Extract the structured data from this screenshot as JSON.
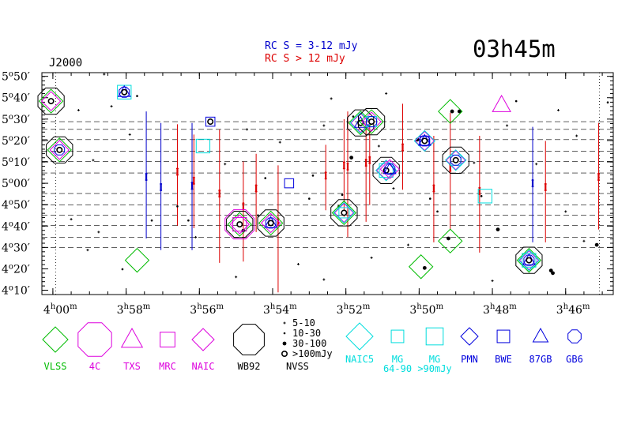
{
  "chart_data": {
    "type": "scatter",
    "title": "03h45m",
    "epoch_label": "J2000",
    "rc_notes": [
      {
        "text": "RC S = 3-12 mJy",
        "color": "#0000cc"
      },
      {
        "text": "RC S > 12 mJy",
        "color": "#dd0000"
      }
    ],
    "x_ticks": [
      {
        "value": 240,
        "hour": "4",
        "minute": "00"
      },
      {
        "value": 238,
        "hour": "3",
        "minute": "58"
      },
      {
        "value": 236,
        "hour": "3",
        "minute": "56"
      },
      {
        "value": 234,
        "hour": "3",
        "minute": "54"
      },
      {
        "value": 232,
        "hour": "3",
        "minute": "52"
      },
      {
        "value": 230,
        "hour": "3",
        "minute": "50"
      },
      {
        "value": 228,
        "hour": "3",
        "minute": "48"
      },
      {
        "value": 226,
        "hour": "3",
        "minute": "46"
      }
    ],
    "y_ticks": [
      {
        "value": 5.8333,
        "deg": "5",
        "arcmin": "50"
      },
      {
        "value": 5.6667,
        "deg": "5",
        "arcmin": "40"
      },
      {
        "value": 5.5,
        "deg": "5",
        "arcmin": "30"
      },
      {
        "value": 5.3333,
        "deg": "5",
        "arcmin": "20"
      },
      {
        "value": 5.1667,
        "deg": "5",
        "arcmin": "10"
      },
      {
        "value": 5.0,
        "deg": "5",
        "arcmin": "00"
      },
      {
        "value": 4.8333,
        "deg": "4",
        "arcmin": "50"
      },
      {
        "value": 4.6667,
        "deg": "4",
        "arcmin": "40"
      },
      {
        "value": 4.5,
        "deg": "4",
        "arcmin": "30"
      },
      {
        "value": 4.3333,
        "deg": "4",
        "arcmin": "20"
      },
      {
        "value": 4.1667,
        "deg": "4",
        "arcmin": "10"
      }
    ],
    "x_range_ra_minutes": [
      240.3,
      224.7
    ],
    "y_range_dec_degrees": [
      4.133,
      5.862
    ],
    "strip_lines_dec": [
      5.48,
      5.42,
      5.34,
      5.25,
      5.17,
      5.08,
      4.92,
      4.83,
      4.75,
      4.67,
      4.58,
      4.5
    ],
    "vertical_dotted_lines_ra": [
      239.92,
      225.08
    ],
    "rc_error_bars": [
      {
        "ra": 237.45,
        "dec": 5.05,
        "low": 4.57,
        "high": 5.56,
        "color": "blue"
      },
      {
        "ra": 237.05,
        "dec": 4.97,
        "low": 4.48,
        "high": 5.47,
        "color": "blue"
      },
      {
        "ra": 236.6,
        "dec": 5.09,
        "low": 4.67,
        "high": 5.46,
        "color": "red"
      },
      {
        "ra": 236.2,
        "dec": 4.98,
        "low": 4.48,
        "high": 5.47,
        "color": "blue"
      },
      {
        "ra": 236.15,
        "dec": 5.02,
        "low": 4.65,
        "high": 5.38,
        "color": "red"
      },
      {
        "ra": 235.45,
        "dec": 4.92,
        "low": 4.38,
        "high": 5.42,
        "color": "red"
      },
      {
        "ra": 234.8,
        "dec": 4.82,
        "low": 4.39,
        "high": 5.17,
        "color": "red"
      },
      {
        "ra": 234.45,
        "dec": 4.96,
        "low": 4.62,
        "high": 5.23,
        "color": "red"
      },
      {
        "ra": 233.85,
        "dec": 4.7,
        "low": 4.15,
        "high": 5.14,
        "color": "red"
      },
      {
        "ra": 232.55,
        "dec": 5.06,
        "low": 4.79,
        "high": 5.3,
        "color": "red"
      },
      {
        "ra": 232.05,
        "dec": 5.14,
        "low": 4.74,
        "high": 5.5,
        "color": "red"
      },
      {
        "ra": 231.95,
        "dec": 5.13,
        "low": 4.58,
        "high": 5.56,
        "color": "red"
      },
      {
        "ra": 231.45,
        "dec": 5.16,
        "low": 4.7,
        "high": 5.48,
        "color": "red"
      },
      {
        "ra": 231.35,
        "dec": 5.18,
        "low": 4.83,
        "high": 5.5,
        "color": "red"
      },
      {
        "ra": 230.45,
        "dec": 5.28,
        "low": 4.95,
        "high": 5.62,
        "color": "red"
      },
      {
        "ra": 229.6,
        "dec": 4.96,
        "low": 4.54,
        "high": 5.37,
        "color": "red"
      },
      {
        "ra": 229.15,
        "dec": 5.12,
        "low": 4.64,
        "high": 5.55,
        "color": "red"
      },
      {
        "ra": 228.35,
        "dec": 4.94,
        "low": 4.46,
        "high": 5.37,
        "color": "red"
      },
      {
        "ra": 226.9,
        "dec": 5.0,
        "low": 4.54,
        "high": 5.44,
        "color": "blue"
      },
      {
        "ra": 226.55,
        "dec": 4.97,
        "low": 4.54,
        "high": 5.33,
        "color": "red"
      },
      {
        "ra": 225.1,
        "dec": 5.05,
        "low": 4.64,
        "high": 5.47,
        "color": "red"
      }
    ],
    "catalog_sources": [
      {
        "ra": 240.05,
        "dec": 5.64,
        "cats": [
          "vlss",
          "naic",
          "wb92",
          "nvss"
        ]
      },
      {
        "ra": 239.82,
        "dec": 5.26,
        "cats": [
          "vlss",
          "naic",
          "gb6",
          "wb92",
          "nvss"
        ]
      },
      {
        "ra": 238.05,
        "dec": 5.71,
        "cats": [
          "mg90",
          "87gb",
          "gb6",
          "nvss"
        ]
      },
      {
        "ra": 235.7,
        "dec": 5.48,
        "cats": [
          "bwe",
          "nvss"
        ]
      },
      {
        "ra": 235.9,
        "dec": 5.29,
        "cats": [
          "mg90"
        ]
      },
      {
        "ra": 234.9,
        "dec": 4.68,
        "cats": [
          "4c",
          "vlss",
          "naic",
          "mrc",
          "wb92",
          "nvss"
        ]
      },
      {
        "ra": 234.05,
        "dec": 4.69,
        "cats": [
          "vlss",
          "naic",
          "87gb",
          "gb6",
          "wb92",
          "nvss"
        ]
      },
      {
        "ra": 233.55,
        "dec": 5.0,
        "cats": [
          "bwe"
        ]
      },
      {
        "ra": 232.05,
        "dec": 4.77,
        "cats": [
          "vlss",
          "naic",
          "naic5",
          "mg",
          "wb92",
          "nvss"
        ]
      },
      {
        "ra": 231.6,
        "dec": 5.47,
        "cats": [
          "vlss",
          "naic",
          "naic5",
          "wb92",
          "87gb",
          "nvss"
        ]
      },
      {
        "ra": 231.3,
        "dec": 5.48,
        "cats": [
          "vlss",
          "naic",
          "mg",
          "wb92",
          "gb6",
          "nvss"
        ]
      },
      {
        "ra": 230.9,
        "dec": 5.1,
        "cats": [
          "naic",
          "naic5",
          "mg90",
          "wb92",
          "nvss"
        ]
      },
      {
        "ra": 230.8,
        "dec": 5.11,
        "cats": [
          "naic",
          "87gb",
          "gb6"
        ]
      },
      {
        "ra": 229.85,
        "dec": 5.33,
        "cats": [
          "naic",
          "naic5",
          "bwe",
          "87gb",
          "gb6",
          "nvss"
        ]
      },
      {
        "ra": 229.0,
        "dec": 5.18,
        "cats": [
          "naic",
          "naic5",
          "mg",
          "wb92",
          "gb6",
          "nvss"
        ]
      },
      {
        "ra": 229.15,
        "dec": 5.56,
        "cats": [
          "vlss"
        ]
      },
      {
        "ra": 229.15,
        "dec": 4.55,
        "cats": [
          "vlss"
        ]
      },
      {
        "ra": 229.95,
        "dec": 4.35,
        "cats": [
          "vlss"
        ]
      },
      {
        "ra": 227.75,
        "dec": 5.61,
        "cats": [
          "txs"
        ]
      },
      {
        "ra": 228.2,
        "dec": 4.9,
        "cats": [
          "mg90"
        ]
      },
      {
        "ra": 227.0,
        "dec": 4.4,
        "cats": [
          "vlss",
          "naic",
          "naic5",
          "mg90",
          "87gb",
          "gb6",
          "wb92",
          "nvss"
        ]
      },
      {
        "ra": 237.7,
        "dec": 4.4,
        "cats": [
          "vlss"
        ]
      }
    ],
    "nvss_sources": [
      {
        "ra": 237.7,
        "dec": 5.68,
        "size": 2
      },
      {
        "ra": 239.3,
        "dec": 5.57,
        "size": 1
      },
      {
        "ra": 238.9,
        "dec": 5.18,
        "size": 1
      },
      {
        "ra": 239.5,
        "dec": 4.72,
        "size": 1
      },
      {
        "ra": 238.1,
        "dec": 4.33,
        "size": 2
      },
      {
        "ra": 238.75,
        "dec": 4.62,
        "size": 1
      },
      {
        "ra": 237.3,
        "dec": 4.71,
        "size": 2
      },
      {
        "ra": 236.6,
        "dec": 4.82,
        "size": 2
      },
      {
        "ra": 236.3,
        "dec": 4.71,
        "size": 2
      },
      {
        "ra": 235.7,
        "dec": 5.49,
        "size": 3
      },
      {
        "ra": 234.8,
        "dec": 4.63,
        "size": 3
      },
      {
        "ra": 234.2,
        "dec": 5.04,
        "size": 2
      },
      {
        "ra": 234.4,
        "dec": 4.75,
        "size": 2
      },
      {
        "ra": 232.9,
        "dec": 5.06,
        "size": 2
      },
      {
        "ra": 233.0,
        "dec": 4.88,
        "size": 2
      },
      {
        "ra": 232.2,
        "dec": 4.82,
        "size": 2
      },
      {
        "ra": 232.1,
        "dec": 4.91,
        "size": 2
      },
      {
        "ra": 231.85,
        "dec": 5.2,
        "size": 3
      },
      {
        "ra": 231.8,
        "dec": 5.52,
        "size": 2
      },
      {
        "ra": 232.6,
        "dec": 5.45,
        "size": 1
      },
      {
        "ra": 231.1,
        "dec": 5.29,
        "size": 1
      },
      {
        "ra": 230.05,
        "dec": 5.34,
        "size": 3
      },
      {
        "ra": 229.1,
        "dec": 5.56,
        "size": 3
      },
      {
        "ra": 228.9,
        "dec": 5.56,
        "size": 3
      },
      {
        "ra": 229.7,
        "dec": 4.88,
        "size": 2
      },
      {
        "ra": 229.85,
        "dec": 4.34,
        "size": 3
      },
      {
        "ra": 229.5,
        "dec": 4.78,
        "size": 2
      },
      {
        "ra": 229.2,
        "dec": 4.57,
        "size": 3
      },
      {
        "ra": 228.3,
        "dec": 4.9,
        "size": 2
      },
      {
        "ra": 227.85,
        "dec": 4.64,
        "size": 3
      },
      {
        "ra": 227.35,
        "dec": 5.64,
        "size": 2
      },
      {
        "ra": 226.35,
        "dec": 4.3,
        "size": 3
      },
      {
        "ra": 226.4,
        "dec": 4.32,
        "size": 3
      },
      {
        "ra": 225.15,
        "dec": 4.52,
        "size": 3
      },
      {
        "ra": 224.85,
        "dec": 5.63,
        "size": 2
      },
      {
        "ra": 225.7,
        "dec": 5.37,
        "size": 1
      },
      {
        "ra": 226.0,
        "dec": 4.78,
        "size": 1
      },
      {
        "ra": 226.8,
        "dec": 5.15,
        "size": 1
      },
      {
        "ra": 227.6,
        "dec": 5.45,
        "size": 1
      },
      {
        "ra": 228.5,
        "dec": 5.16,
        "size": 1
      },
      {
        "ra": 230.7,
        "dec": 4.96,
        "size": 1
      },
      {
        "ra": 230.3,
        "dec": 4.52,
        "size": 1
      },
      {
        "ra": 231.3,
        "dec": 4.42,
        "size": 1
      },
      {
        "ra": 232.6,
        "dec": 4.25,
        "size": 1
      },
      {
        "ra": 233.3,
        "dec": 4.37,
        "size": 1
      },
      {
        "ra": 233.8,
        "dec": 5.32,
        "size": 1
      },
      {
        "ra": 234.7,
        "dec": 5.42,
        "size": 1
      },
      {
        "ra": 235.3,
        "dec": 5.15,
        "size": 1
      },
      {
        "ra": 236.1,
        "dec": 4.58,
        "size": 1
      },
      {
        "ra": 237.9,
        "dec": 5.38,
        "size": 1
      },
      {
        "ra": 238.4,
        "dec": 5.6,
        "size": 1
      },
      {
        "ra": 239.05,
        "dec": 4.48,
        "size": 1
      },
      {
        "ra": 238.6,
        "dec": 5.85,
        "size": 1
      },
      {
        "ra": 235.0,
        "dec": 4.27,
        "size": 1
      },
      {
        "ra": 228.0,
        "dec": 4.24,
        "size": 1
      },
      {
        "ra": 226.2,
        "dec": 5.57,
        "size": 1
      },
      {
        "ra": 225.5,
        "dec": 4.55,
        "size": 1
      },
      {
        "ra": 230.9,
        "dec": 5.7,
        "size": 1
      },
      {
        "ra": 232.4,
        "dec": 5.66,
        "size": 1
      }
    ],
    "legend": {
      "symbol_row_1": [
        {
          "key": "vlss",
          "label": "VLSS",
          "color": "#00bb00"
        },
        {
          "key": "4c",
          "label": "4C",
          "color": "#dd00dd"
        },
        {
          "key": "txs",
          "label": "TXS",
          "color": "#dd00dd"
        },
        {
          "key": "mrc",
          "label": "MRC",
          "color": "#dd00dd"
        },
        {
          "key": "naic",
          "label": "NAIC",
          "color": "#dd00dd"
        },
        {
          "key": "wb92",
          "label": "WB92",
          "color": "#000000"
        }
      ],
      "nvss_sizes": [
        "5-10",
        "10-30",
        "30-100",
        ">100mJy"
      ],
      "nvss_label": "NVSS",
      "symbol_row_2": [
        {
          "key": "naic5",
          "label": "NAIC5",
          "color": "#00dddd"
        },
        {
          "key": "mg",
          "label": "MG",
          "color": "#00dddd"
        },
        {
          "key": "mg90",
          "label": "MG",
          "color": "#00dddd"
        },
        {
          "key": "pmn",
          "label": "PMN",
          "color": "#0000dd"
        },
        {
          "key": "bwe",
          "label": "BWE",
          "color": "#0000dd"
        },
        {
          "key": "87gb",
          "label": "87GB",
          "color": "#0000dd"
        },
        {
          "key": "gb6",
          "label": "GB6",
          "color": "#0000dd"
        }
      ],
      "mg_subnote_1": "64-90",
      "mg_subnote_2": ">90mJy"
    }
  }
}
